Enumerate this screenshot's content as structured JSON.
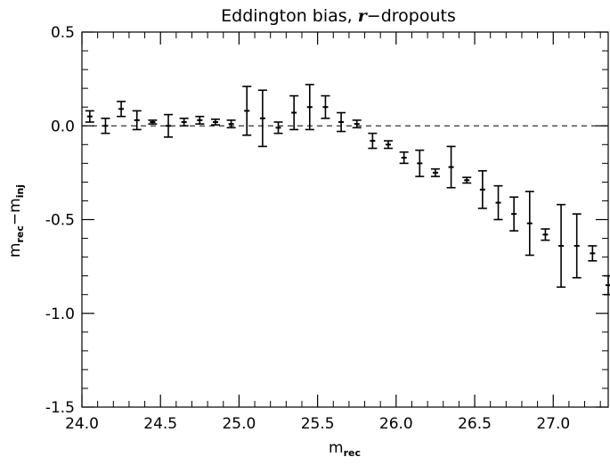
{
  "chart_data": {
    "type": "scatter",
    "title_prefix": "Eddington bias, ",
    "title_italic": "r",
    "title_suffix": "−dropouts",
    "xlabel": "m",
    "xlabel_sub": "rec",
    "ylabel_a": "m",
    "ylabel_a_sub": "rec",
    "ylabel_minus": "−",
    "ylabel_b": "m",
    "ylabel_b_sub": "inj",
    "xlim": [
      24.0,
      27.35
    ],
    "ylim": [
      -1.5,
      0.5
    ],
    "x_ticks": [
      "24.0",
      "24.5",
      "25.0",
      "25.5",
      "26.0",
      "26.5",
      "27.0"
    ],
    "y_ticks": [
      "0.5",
      "0.0",
      "-0.5",
      "-1.0",
      "-1.5"
    ],
    "reference_line_y": 0.0,
    "series": [
      {
        "points": [
          {
            "x": 24.05,
            "y": 0.05,
            "err": 0.03
          },
          {
            "x": 24.15,
            "y": 0.0,
            "err": 0.04
          },
          {
            "x": 24.25,
            "y": 0.09,
            "err": 0.04
          },
          {
            "x": 24.35,
            "y": 0.03,
            "err": 0.05
          },
          {
            "x": 24.45,
            "y": 0.02,
            "err": 0.01
          },
          {
            "x": 24.55,
            "y": 0.0,
            "err": 0.06
          },
          {
            "x": 24.65,
            "y": 0.02,
            "err": 0.02
          },
          {
            "x": 24.75,
            "y": 0.03,
            "err": 0.02
          },
          {
            "x": 24.85,
            "y": 0.02,
            "err": 0.015
          },
          {
            "x": 24.95,
            "y": 0.01,
            "err": 0.02
          },
          {
            "x": 25.05,
            "y": 0.08,
            "err": 0.13
          },
          {
            "x": 25.15,
            "y": 0.04,
            "err": 0.15
          },
          {
            "x": 25.25,
            "y": -0.01,
            "err": 0.03
          },
          {
            "x": 25.35,
            "y": 0.07,
            "err": 0.09
          },
          {
            "x": 25.45,
            "y": 0.1,
            "err": 0.12
          },
          {
            "x": 25.55,
            "y": 0.1,
            "err": 0.06
          },
          {
            "x": 25.65,
            "y": 0.02,
            "err": 0.05
          },
          {
            "x": 25.75,
            "y": 0.01,
            "err": 0.02
          },
          {
            "x": 25.85,
            "y": -0.08,
            "err": 0.04
          },
          {
            "x": 25.95,
            "y": -0.1,
            "err": 0.02
          },
          {
            "x": 26.05,
            "y": -0.17,
            "err": 0.03
          },
          {
            "x": 26.15,
            "y": -0.2,
            "err": 0.07
          },
          {
            "x": 26.25,
            "y": -0.25,
            "err": 0.02
          },
          {
            "x": 26.35,
            "y": -0.22,
            "err": 0.11
          },
          {
            "x": 26.45,
            "y": -0.29,
            "err": 0.015
          },
          {
            "x": 26.55,
            "y": -0.34,
            "err": 0.1
          },
          {
            "x": 26.65,
            "y": -0.41,
            "err": 0.09
          },
          {
            "x": 26.75,
            "y": -0.47,
            "err": 0.09
          },
          {
            "x": 26.85,
            "y": -0.52,
            "err": 0.17
          },
          {
            "x": 26.95,
            "y": -0.58,
            "err": 0.03
          },
          {
            "x": 27.05,
            "y": -0.64,
            "err": 0.22
          },
          {
            "x": 27.15,
            "y": -0.64,
            "err": 0.17
          },
          {
            "x": 27.25,
            "y": -0.68,
            "err": 0.04
          },
          {
            "x": 27.35,
            "y": -0.85,
            "err": 0.05
          }
        ]
      }
    ]
  }
}
